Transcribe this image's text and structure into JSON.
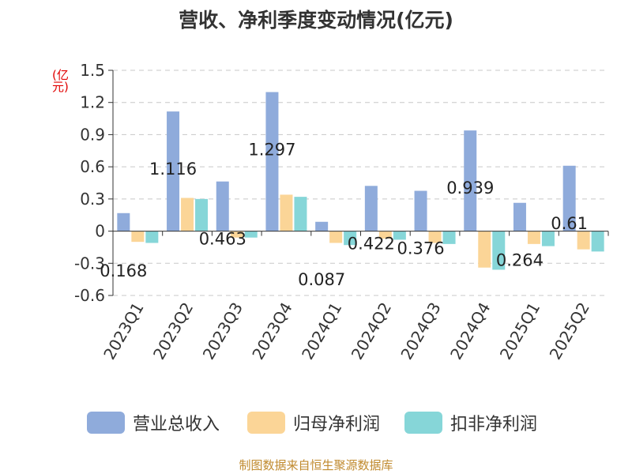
{
  "title": "营收、净利季度变动情况(亿元)",
  "unit_label": "(亿元)",
  "source": "制图数据来自恒生聚源数据库",
  "colors": {
    "revenue": "#8fabdb",
    "net_profit": "#fbd597",
    "non_gaap": "#86d6d8"
  },
  "chart_data": {
    "type": "bar",
    "title": "营收、净利季度变动情况(亿元)",
    "ylabel": "(亿元)",
    "xlabel": "",
    "ylim": [
      -0.6,
      1.5
    ],
    "yticks": [
      1.5,
      1.2,
      0.9,
      0.6,
      0.3,
      0,
      -0.3,
      -0.6
    ],
    "grid": true,
    "legend_position": "bottom",
    "categories": [
      "2023Q1",
      "2023Q2",
      "2023Q3",
      "2023Q4",
      "2024Q1",
      "2024Q2",
      "2024Q3",
      "2024Q4",
      "2025Q1",
      "2025Q2"
    ],
    "series": [
      {
        "name": "营业总收入",
        "color": "#8fabdb",
        "values": [
          0.168,
          1.116,
          0.463,
          1.297,
          0.087,
          0.422,
          0.376,
          0.939,
          0.264,
          0.61
        ],
        "data_labels": [
          "0.168",
          "1.116",
          "0.463",
          "1.297",
          "0.087",
          "0.422",
          "0.376",
          "0.939",
          "0.264",
          "0.61"
        ]
      },
      {
        "name": "归母净利润",
        "color": "#fbd597",
        "values": [
          -0.1,
          0.31,
          -0.06,
          0.34,
          -0.11,
          -0.07,
          -0.11,
          -0.34,
          -0.12,
          -0.17
        ]
      },
      {
        "name": "扣非净利润",
        "color": "#86d6d8",
        "values": [
          -0.11,
          0.3,
          -0.06,
          0.32,
          -0.13,
          -0.08,
          -0.12,
          -0.36,
          -0.14,
          -0.19
        ]
      }
    ]
  }
}
